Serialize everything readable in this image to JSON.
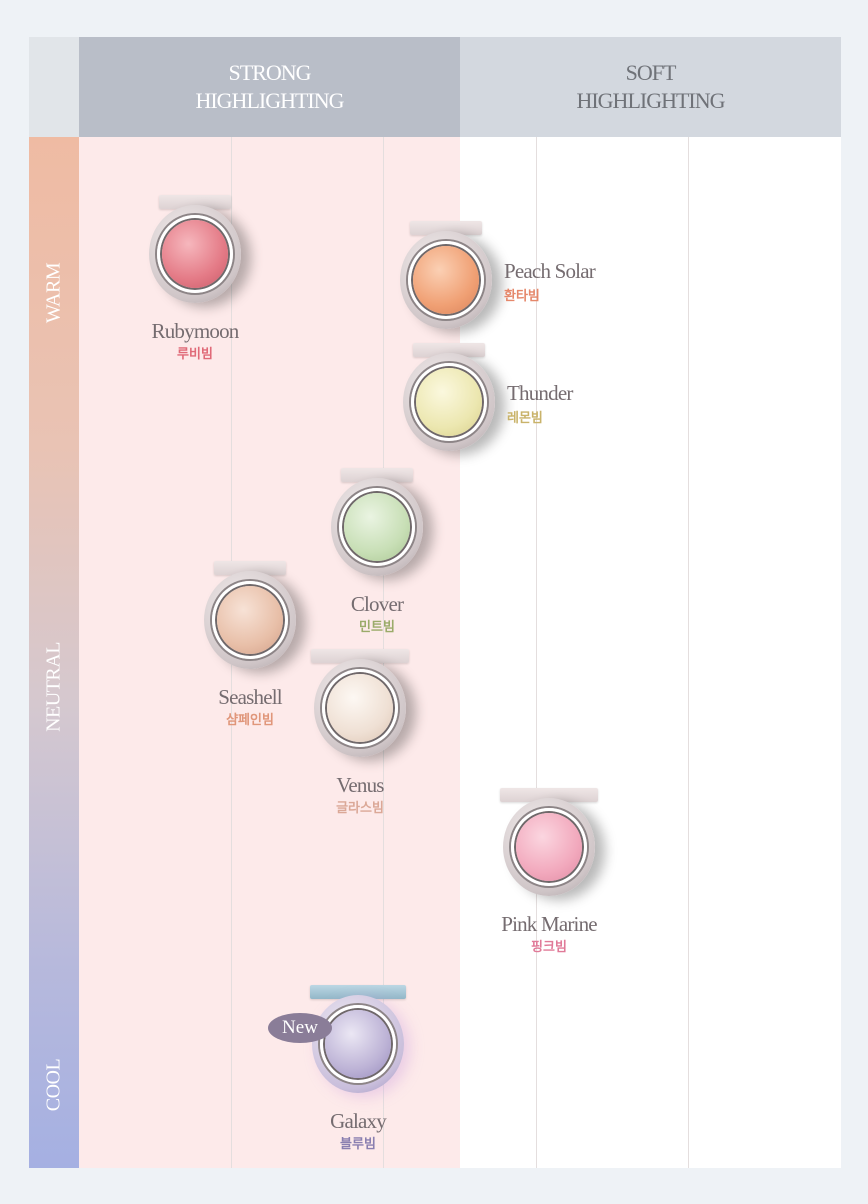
{
  "header": {
    "strong": [
      "STRONG",
      "HIGHLIGHTING"
    ],
    "soft": [
      "SOFT",
      "HIGHLIGHTING"
    ]
  },
  "axis": {
    "warm": "WARM",
    "neutral": "NEUTRAL",
    "cool": "COOL"
  },
  "colors": {
    "strong_bg": "#fdeaea",
    "soft_bg": "#ffffff",
    "warm": "#efbba3",
    "cool": "#a5b0e2"
  },
  "products": [
    {
      "name": "Rubymoon",
      "korean": "루비빔",
      "zone": "strong",
      "tone": "warm",
      "pan_color": "#e47a86",
      "korean_color": "#e06a78"
    },
    {
      "name": "Peach Solar",
      "korean": "환타빔",
      "zone": "soft",
      "tone": "warm",
      "pan_color": "#f0a074",
      "korean_color": "#e5876a"
    },
    {
      "name": "Thunder",
      "korean": "레몬빔",
      "zone": "soft",
      "tone": "warm",
      "pan_color": "#ece7b0",
      "korean_color": "#c9b36a"
    },
    {
      "name": "Clover",
      "korean": "민트빔",
      "zone": "strong",
      "tone": "neutral",
      "pan_color": "#c8dfb6",
      "korean_color": "#9bab6a"
    },
    {
      "name": "Seashell",
      "korean": "샴페인빔",
      "zone": "strong",
      "tone": "neutral",
      "pan_color": "#e8bfa8",
      "korean_color": "#e0967a"
    },
    {
      "name": "Venus",
      "korean": "글라스빔",
      "zone": "strong",
      "tone": "neutral",
      "pan_color": "#efe0d4",
      "korean_color": "#dba897"
    },
    {
      "name": "Pink Marine",
      "korean": "핑크빔",
      "zone": "soft",
      "tone": "cool",
      "pan_color": "#f2a9bd",
      "korean_color": "#e07a98"
    },
    {
      "name": "Galaxy",
      "korean": "블루빔",
      "zone": "strong",
      "tone": "cool",
      "pan_color": "#bdb3d6",
      "korean_color": "#8a7fb0",
      "badge": "New"
    }
  ]
}
